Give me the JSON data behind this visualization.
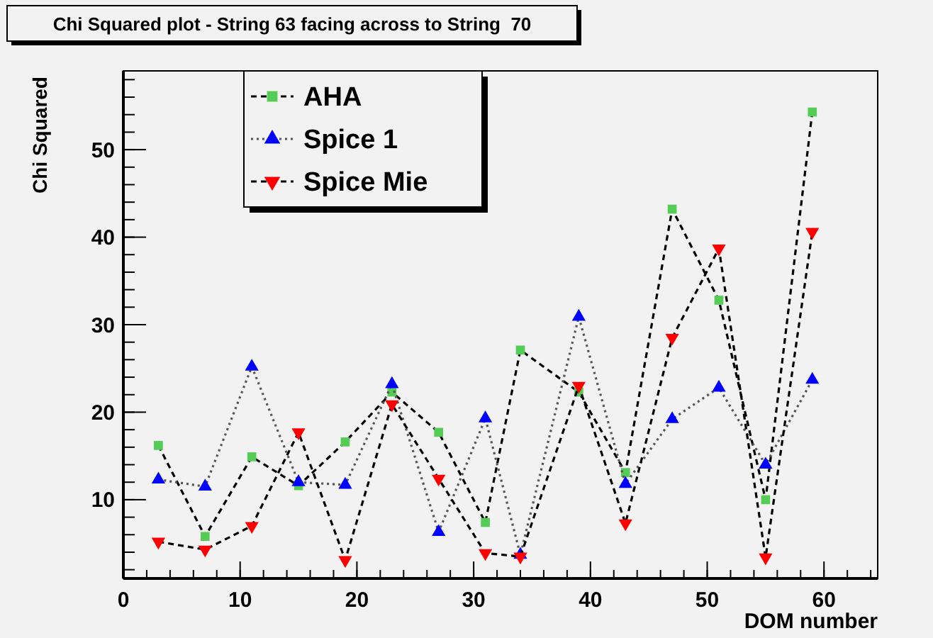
{
  "chart_data": {
    "type": "line",
    "title": "Chi Squared plot - String 63 facing across to String  70",
    "xlabel": "DOM number",
    "ylabel": "Chi Squared",
    "x": [
      3,
      7,
      11,
      15,
      19,
      23,
      27,
      31,
      34,
      39,
      43,
      47,
      51,
      55,
      59
    ],
    "series": [
      {
        "name": "AHA",
        "color": "#55cc55",
        "marker": "square",
        "line_style": "dashed",
        "values": [
          16.2,
          5.8,
          14.9,
          11.6,
          16.6,
          22.3,
          17.7,
          7.4,
          27.1,
          22.3,
          13.1,
          43.2,
          32.8,
          10.0,
          54.3
        ]
      },
      {
        "name": "Spice 1",
        "color": "#0000ff",
        "marker": "triangle",
        "line_style": "dotted",
        "values": [
          12.3,
          11.5,
          25.2,
          12.0,
          11.7,
          23.2,
          6.3,
          19.3,
          3.7,
          30.9,
          11.8,
          19.2,
          22.8,
          14.0,
          23.7
        ]
      },
      {
        "name": "Spice Mie",
        "color": "#ff0000",
        "marker": "triangle-down",
        "line_style": "dashed",
        "values": [
          5.2,
          4.3,
          7.0,
          17.7,
          3.1,
          20.9,
          12.4,
          3.9,
          3.5,
          23.0,
          7.3,
          28.5,
          38.7,
          3.4,
          40.6
        ]
      }
    ],
    "xlim": [
      0,
      64.6
    ],
    "xticks": [
      0,
      10,
      20,
      30,
      40,
      50,
      60
    ],
    "ylim": [
      1,
      59
    ],
    "yticks": [
      10,
      20,
      30,
      40,
      50
    ],
    "grid": false,
    "legend": "top left"
  }
}
